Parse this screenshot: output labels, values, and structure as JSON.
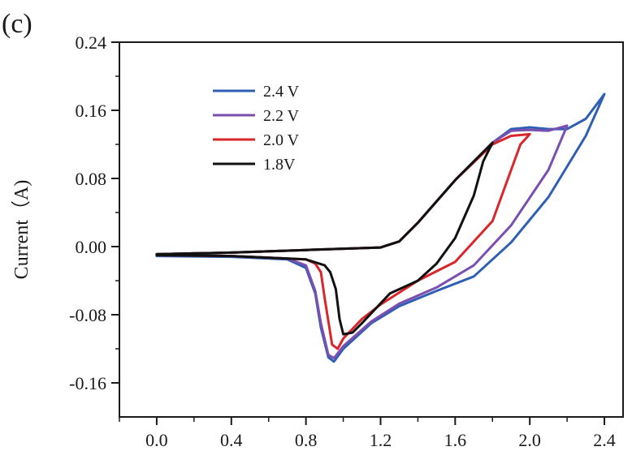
{
  "panel_label": "(c)",
  "chart_data": {
    "type": "line",
    "title": "",
    "xlabel": "",
    "ylabel": "Current（A)",
    "xlim": [
      -0.2,
      2.5
    ],
    "ylim": [
      -0.2,
      0.24
    ],
    "x_ticks": [
      0.0,
      0.4,
      0.8,
      1.2,
      1.6,
      2.0,
      2.4
    ],
    "x_tick_labels": [
      "0.0",
      "0.4",
      "0.8",
      "1.2",
      "1.6",
      "2.0",
      "2.4"
    ],
    "y_ticks": [
      0.24,
      0.16,
      0.08,
      0.0,
      -0.08,
      -0.16
    ],
    "y_tick_labels": [
      "0.24",
      "0.16",
      "0.08",
      "0.00",
      "-0.08",
      "-0.16"
    ],
    "grid": false,
    "legend_position": "top-left",
    "series": [
      {
        "name": "2.4 V",
        "color": "#2f5fb3",
        "points": [
          [
            0.0,
            -0.009
          ],
          [
            0.4,
            -0.007
          ],
          [
            0.8,
            -0.004
          ],
          [
            1.2,
            -0.001
          ],
          [
            1.3,
            0.006
          ],
          [
            1.4,
            0.028
          ],
          [
            1.6,
            0.078
          ],
          [
            1.8,
            0.122
          ],
          [
            1.9,
            0.138
          ],
          [
            2.0,
            0.14
          ],
          [
            2.1,
            0.138
          ],
          [
            2.2,
            0.138
          ],
          [
            2.3,
            0.15
          ],
          [
            2.4,
            0.179
          ],
          [
            2.3,
            0.13
          ],
          [
            2.1,
            0.058
          ],
          [
            1.9,
            0.005
          ],
          [
            1.7,
            -0.035
          ],
          [
            1.5,
            -0.052
          ],
          [
            1.3,
            -0.07
          ],
          [
            1.15,
            -0.09
          ],
          [
            1.0,
            -0.12
          ],
          [
            0.95,
            -0.135
          ],
          [
            0.92,
            -0.13
          ],
          [
            0.88,
            -0.095
          ],
          [
            0.85,
            -0.055
          ],
          [
            0.8,
            -0.025
          ],
          [
            0.7,
            -0.015
          ],
          [
            0.4,
            -0.012
          ],
          [
            0.0,
            -0.011
          ]
        ]
      },
      {
        "name": "2.2 V",
        "color": "#7a4fb0",
        "points": [
          [
            0.0,
            -0.009
          ],
          [
            0.4,
            -0.007
          ],
          [
            0.8,
            -0.004
          ],
          [
            1.2,
            -0.001
          ],
          [
            1.3,
            0.006
          ],
          [
            1.4,
            0.028
          ],
          [
            1.6,
            0.078
          ],
          [
            1.8,
            0.122
          ],
          [
            1.9,
            0.136
          ],
          [
            2.0,
            0.137
          ],
          [
            2.1,
            0.136
          ],
          [
            2.2,
            0.142
          ],
          [
            2.1,
            0.09
          ],
          [
            1.9,
            0.025
          ],
          [
            1.7,
            -0.022
          ],
          [
            1.5,
            -0.048
          ],
          [
            1.3,
            -0.067
          ],
          [
            1.15,
            -0.088
          ],
          [
            1.0,
            -0.117
          ],
          [
            0.95,
            -0.131
          ],
          [
            0.92,
            -0.127
          ],
          [
            0.88,
            -0.09
          ],
          [
            0.85,
            -0.052
          ],
          [
            0.8,
            -0.022
          ],
          [
            0.7,
            -0.014
          ],
          [
            0.4,
            -0.011
          ],
          [
            0.0,
            -0.01
          ]
        ]
      },
      {
        "name": "2.0 V",
        "color": "#d9262b",
        "points": [
          [
            0.0,
            -0.009
          ],
          [
            0.4,
            -0.007
          ],
          [
            0.8,
            -0.004
          ],
          [
            1.2,
            -0.001
          ],
          [
            1.3,
            0.006
          ],
          [
            1.4,
            0.028
          ],
          [
            1.6,
            0.078
          ],
          [
            1.8,
            0.12
          ],
          [
            1.9,
            0.13
          ],
          [
            2.0,
            0.132
          ],
          [
            1.95,
            0.12
          ],
          [
            1.9,
            0.09
          ],
          [
            1.8,
            0.03
          ],
          [
            1.6,
            -0.018
          ],
          [
            1.4,
            -0.04
          ],
          [
            1.2,
            -0.068
          ],
          [
            1.1,
            -0.085
          ],
          [
            1.0,
            -0.108
          ],
          [
            0.97,
            -0.12
          ],
          [
            0.94,
            -0.115
          ],
          [
            0.9,
            -0.06
          ],
          [
            0.88,
            -0.03
          ],
          [
            0.85,
            -0.02
          ],
          [
            0.8,
            -0.015
          ],
          [
            0.4,
            -0.011
          ],
          [
            0.0,
            -0.01
          ]
        ]
      },
      {
        "name": "1.8V",
        "color": "#111111",
        "points": [
          [
            0.0,
            -0.009
          ],
          [
            0.4,
            -0.007
          ],
          [
            0.8,
            -0.004
          ],
          [
            1.2,
            -0.001
          ],
          [
            1.3,
            0.006
          ],
          [
            1.4,
            0.028
          ],
          [
            1.6,
            0.078
          ],
          [
            1.8,
            0.122
          ],
          [
            1.75,
            0.1
          ],
          [
            1.7,
            0.06
          ],
          [
            1.6,
            0.01
          ],
          [
            1.5,
            -0.02
          ],
          [
            1.4,
            -0.04
          ],
          [
            1.25,
            -0.055
          ],
          [
            1.1,
            -0.09
          ],
          [
            1.05,
            -0.101
          ],
          [
            1.0,
            -0.103
          ],
          [
            0.98,
            -0.085
          ],
          [
            0.96,
            -0.05
          ],
          [
            0.93,
            -0.03
          ],
          [
            0.9,
            -0.022
          ],
          [
            0.8,
            -0.015
          ],
          [
            0.4,
            -0.011
          ],
          [
            0.0,
            -0.01
          ]
        ]
      }
    ]
  }
}
